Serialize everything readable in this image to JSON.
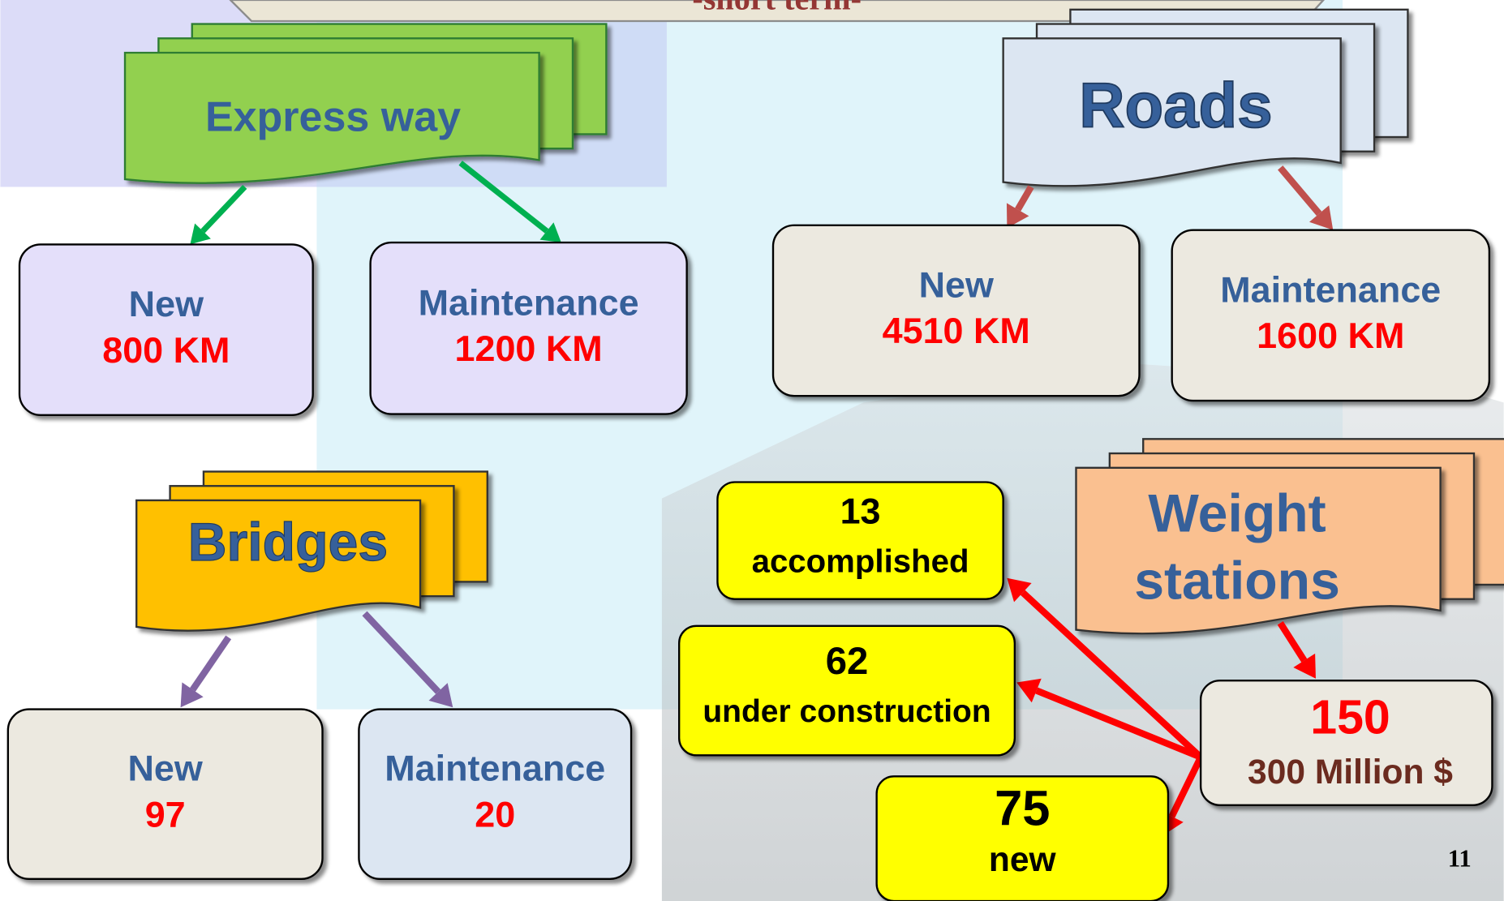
{
  "header": {
    "title": "-short term-"
  },
  "page_number": "11",
  "express_way": {
    "title": "Express way",
    "children": [
      {
        "label": "New",
        "value": "800 KM"
      },
      {
        "label": "Maintenance",
        "value": "1200 KM"
      }
    ]
  },
  "roads": {
    "title": "Roads",
    "children": [
      {
        "label": "New",
        "value": "4510 KM"
      },
      {
        "label": "Maintenance",
        "value": "1600 KM"
      }
    ]
  },
  "bridges": {
    "title": "Bridges",
    "children": [
      {
        "label": "New",
        "value": "97"
      },
      {
        "label": "Maintenance",
        "value": "20"
      }
    ]
  },
  "weight_stations": {
    "title_lines": [
      "Weight",
      "stations"
    ],
    "total": {
      "count": "150",
      "cost": "300 Million $"
    },
    "statuses": [
      {
        "count": "13",
        "label": "accomplished"
      },
      {
        "count": "62",
        "label": "under construction"
      },
      {
        "count": "75",
        "label": "new"
      }
    ]
  }
}
